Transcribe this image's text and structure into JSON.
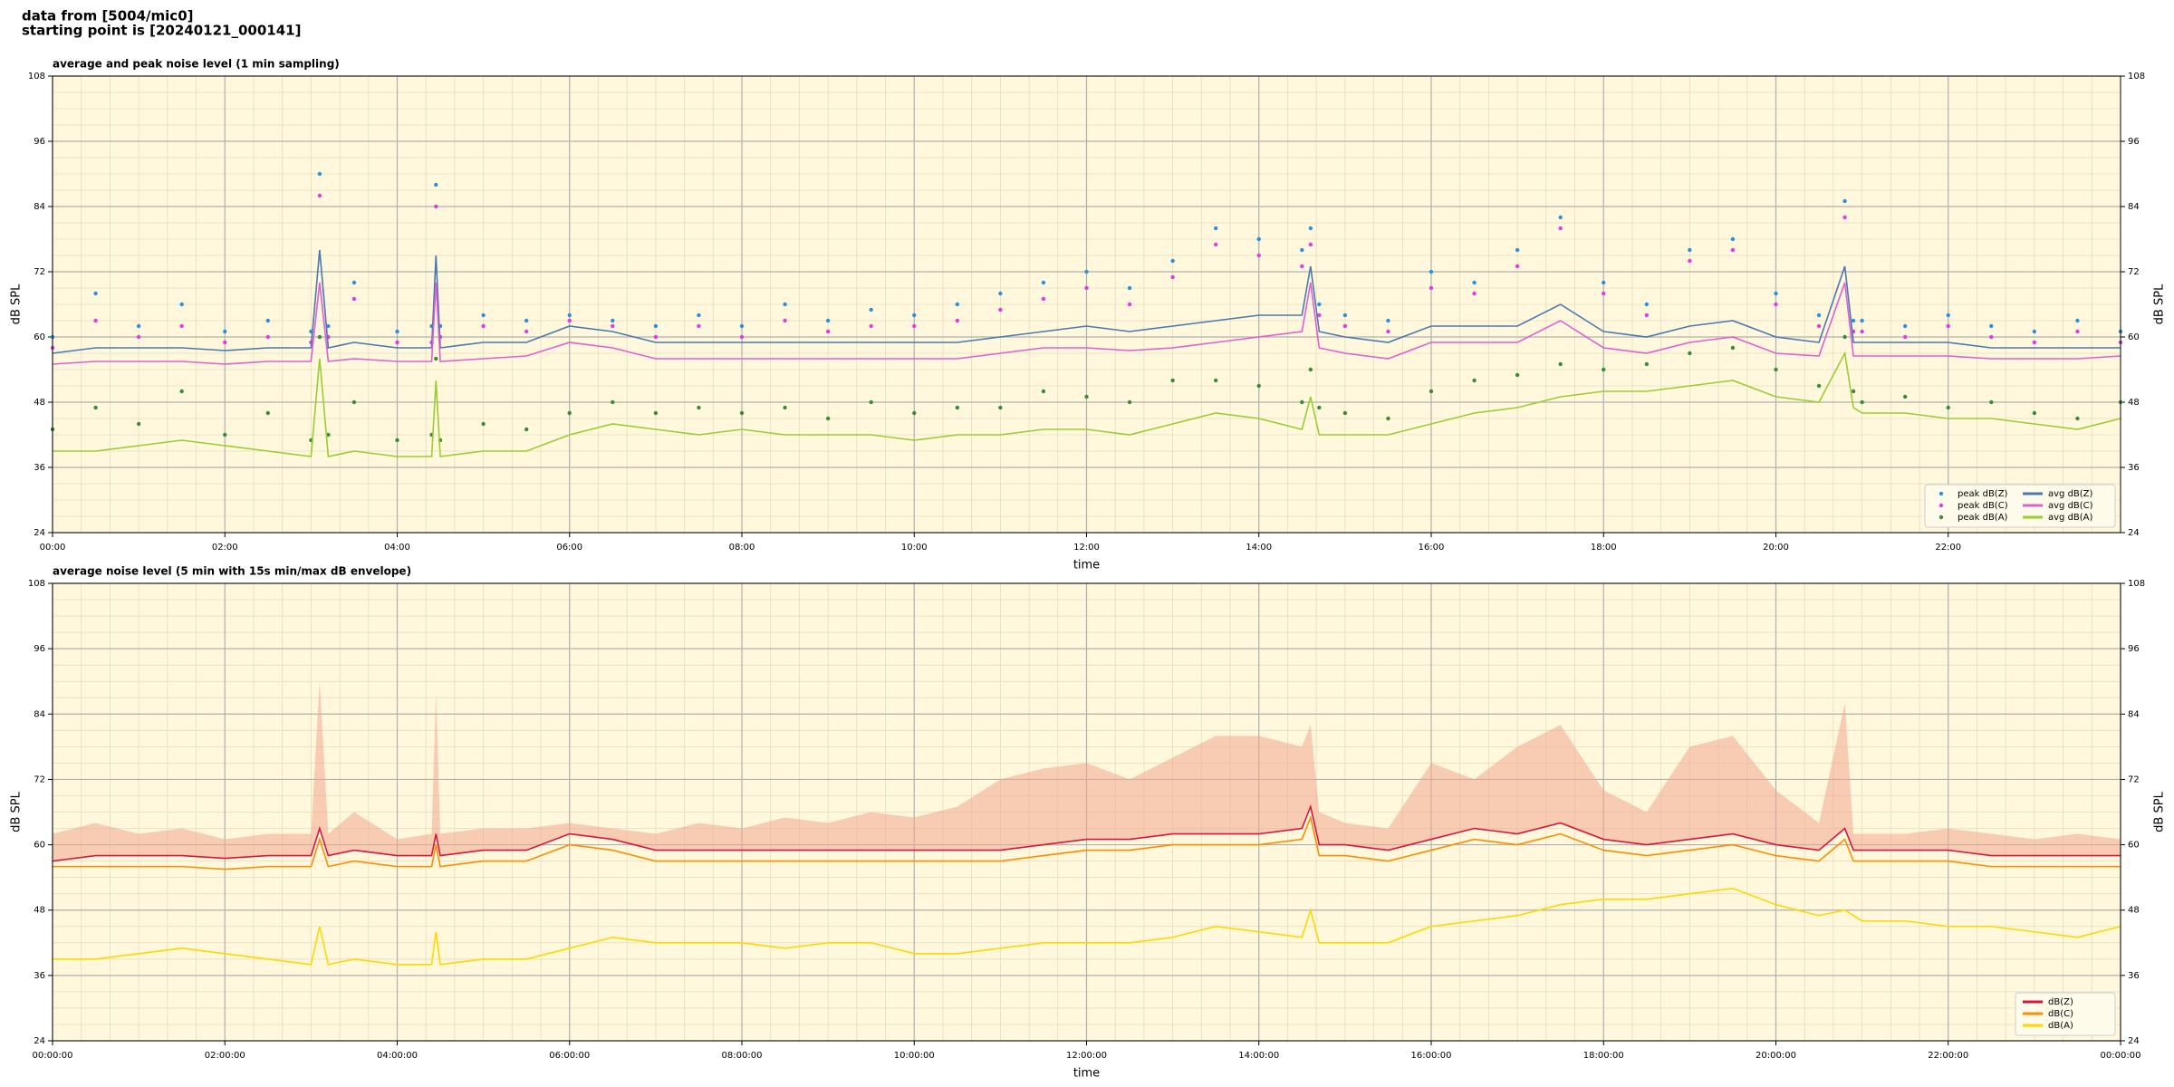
{
  "header": [
    "data from [5004/mic0]",
    "starting point is [20240121_000141]"
  ],
  "chart_data": [
    {
      "type": "line",
      "title": "average and peak noise level (1 min sampling)",
      "xlabel": "time",
      "ylabel": "dB SPL",
      "x": [
        0,
        0.5,
        1,
        1.5,
        2,
        2.5,
        3,
        3.1,
        3.2,
        3.5,
        4,
        4.4,
        4.45,
        4.5,
        5,
        5.5,
        6,
        6.5,
        7,
        7.5,
        8,
        8.5,
        9,
        9.5,
        10,
        10.5,
        11,
        11.5,
        12,
        12.5,
        13,
        13.5,
        14,
        14.5,
        14.6,
        14.7,
        15,
        15.5,
        16,
        16.5,
        17,
        17.5,
        18,
        18.5,
        19,
        19.5,
        20,
        20.5,
        20.8,
        20.9,
        21,
        21.5,
        22,
        22.5,
        23,
        23.5,
        24
      ],
      "xlim": [
        0,
        24
      ],
      "xticks": [
        {
          "value": 0,
          "label": "00:00"
        },
        {
          "value": 2,
          "label": "02:00"
        },
        {
          "value": 4,
          "label": "04:00"
        },
        {
          "value": 6,
          "label": "06:00"
        },
        {
          "value": 8,
          "label": "08:00"
        },
        {
          "value": 10,
          "label": "10:00"
        },
        {
          "value": 12,
          "label": "12:00"
        },
        {
          "value": 14,
          "label": "14:00"
        },
        {
          "value": 16,
          "label": "16:00"
        },
        {
          "value": 18,
          "label": "18:00"
        },
        {
          "value": 20,
          "label": "20:00"
        },
        {
          "value": 22,
          "label": "22:00"
        }
      ],
      "ylim": [
        24,
        108
      ],
      "yticks": [
        24,
        36,
        48,
        60,
        72,
        84,
        96,
        108
      ],
      "grid": true,
      "legend": "lower right",
      "legend_columns": 2,
      "series": [
        {
          "name": "peak dB(Z)",
          "type": "scatter",
          "color": "#2f8fd8",
          "values": [
            60,
            68,
            62,
            66,
            61,
            63,
            61,
            90,
            62,
            70,
            61,
            62,
            88,
            62,
            64,
            63,
            64,
            63,
            62,
            64,
            62,
            66,
            63,
            65,
            64,
            66,
            68,
            70,
            72,
            69,
            74,
            80,
            78,
            76,
            80,
            66,
            64,
            63,
            72,
            70,
            76,
            82,
            70,
            66,
            76,
            78,
            68,
            64,
            85,
            63,
            63,
            62,
            64,
            62,
            61,
            63,
            61
          ]
        },
        {
          "name": "peak dB(C)",
          "type": "scatter",
          "color": "#e03ce0",
          "values": [
            58,
            63,
            60,
            62,
            59,
            60,
            59,
            86,
            60,
            67,
            59,
            59,
            84,
            60,
            62,
            61,
            63,
            62,
            60,
            62,
            60,
            63,
            61,
            62,
            62,
            63,
            65,
            67,
            69,
            66,
            71,
            77,
            75,
            73,
            77,
            64,
            62,
            61,
            69,
            68,
            73,
            80,
            68,
            64,
            74,
            76,
            66,
            62,
            82,
            61,
            61,
            60,
            62,
            60,
            59,
            61,
            59
          ]
        },
        {
          "name": "peak dB(A)",
          "type": "scatter",
          "color": "#3a8a3a",
          "values": [
            43,
            47,
            44,
            50,
            42,
            46,
            41,
            60,
            42,
            48,
            41,
            42,
            56,
            41,
            44,
            43,
            46,
            48,
            46,
            47,
            46,
            47,
            45,
            48,
            46,
            47,
            47,
            50,
            49,
            48,
            52,
            52,
            51,
            48,
            54,
            47,
            46,
            45,
            50,
            52,
            53,
            55,
            54,
            55,
            57,
            58,
            54,
            51,
            60,
            50,
            48,
            49,
            47,
            48,
            46,
            45,
            48
          ]
        },
        {
          "name": "avg dB(Z)",
          "type": "line",
          "color": "#4a78b0",
          "values": [
            57,
            58,
            58,
            58,
            57.5,
            58,
            58,
            76,
            58,
            59,
            58,
            58,
            75,
            58,
            59,
            59,
            62,
            61,
            59,
            59,
            59,
            59,
            59,
            59,
            59,
            59,
            60,
            61,
            62,
            61,
            62,
            63,
            64,
            64,
            73,
            61,
            60,
            59,
            62,
            62,
            62,
            66,
            61,
            60,
            62,
            63,
            60,
            59,
            73,
            59,
            59,
            59,
            59,
            58,
            58,
            58,
            58
          ]
        },
        {
          "name": "avg dB(C)",
          "type": "line",
          "color": "#e060d0",
          "values": [
            55,
            55.5,
            55.5,
            55.5,
            55,
            55.5,
            55.5,
            70,
            55.5,
            56,
            55.5,
            55.5,
            70,
            55.5,
            56,
            56.5,
            59,
            58,
            56,
            56,
            56,
            56,
            56,
            56,
            56,
            56,
            57,
            58,
            58,
            57.5,
            58,
            59,
            60,
            61,
            70,
            58,
            57,
            56,
            59,
            59,
            59,
            63,
            58,
            57,
            59,
            60,
            57,
            56.5,
            70,
            56.5,
            56.5,
            56.5,
            56.5,
            56,
            56,
            56,
            56.5
          ]
        },
        {
          "name": "avg dB(A)",
          "type": "line",
          "color": "#9acd32",
          "values": [
            39,
            39,
            40,
            41,
            40,
            39,
            38,
            56,
            38,
            39,
            38,
            38,
            52,
            38,
            39,
            39,
            42,
            44,
            43,
            42,
            43,
            42,
            42,
            42,
            41,
            42,
            42,
            43,
            43,
            42,
            44,
            46,
            45,
            43,
            49,
            42,
            42,
            42,
            44,
            46,
            47,
            49,
            50,
            50,
            51,
            52,
            49,
            48,
            57,
            47,
            46,
            46,
            45,
            45,
            44,
            43,
            45
          ]
        }
      ]
    },
    {
      "type": "line",
      "title": "average noise level (5 min with 15s min/max dB envelope)",
      "xlabel": "time",
      "ylabel": "dB SPL",
      "x": [
        0,
        0.5,
        1,
        1.5,
        2,
        2.5,
        3,
        3.1,
        3.2,
        3.5,
        4,
        4.4,
        4.45,
        4.5,
        5,
        5.5,
        6,
        6.5,
        7,
        7.5,
        8,
        8.5,
        9,
        9.5,
        10,
        10.5,
        11,
        11.5,
        12,
        12.5,
        13,
        13.5,
        14,
        14.5,
        14.6,
        14.7,
        15,
        15.5,
        16,
        16.5,
        17,
        17.5,
        18,
        18.5,
        19,
        19.5,
        20,
        20.5,
        20.8,
        20.9,
        21,
        21.5,
        22,
        22.5,
        23,
        23.5,
        24
      ],
      "xlim": [
        0,
        24
      ],
      "xticks": [
        {
          "value": 0,
          "label": "00:00:00"
        },
        {
          "value": 2,
          "label": "02:00:00"
        },
        {
          "value": 4,
          "label": "04:00:00"
        },
        {
          "value": 6,
          "label": "06:00:00"
        },
        {
          "value": 8,
          "label": "08:00:00"
        },
        {
          "value": 10,
          "label": "10:00:00"
        },
        {
          "value": 12,
          "label": "12:00:00"
        },
        {
          "value": 14,
          "label": "14:00:00"
        },
        {
          "value": 16,
          "label": "16:00:00"
        },
        {
          "value": 18,
          "label": "18:00:00"
        },
        {
          "value": 20,
          "label": "20:00:00"
        },
        {
          "value": 22,
          "label": "22:00:00"
        },
        {
          "value": 24,
          "label": "00:00:00"
        }
      ],
      "ylim": [
        24,
        108
      ],
      "yticks": [
        24,
        36,
        48,
        60,
        72,
        84,
        96,
        108
      ],
      "grid": true,
      "legend": "lower right",
      "legend_columns": 1,
      "series": [
        {
          "name": "dB(Z)",
          "type": "line",
          "color": "#dc143c",
          "envelope_color": "#f0a890",
          "envelope_max": [
            62,
            64,
            62,
            63,
            61,
            62,
            62,
            90,
            62,
            66,
            61,
            62,
            88,
            62,
            63,
            63,
            64,
            63,
            62,
            64,
            63,
            65,
            64,
            66,
            65,
            67,
            72,
            74,
            75,
            72,
            76,
            80,
            80,
            78,
            82,
            66,
            64,
            63,
            75,
            72,
            78,
            82,
            70,
            66,
            78,
            80,
            70,
            64,
            86,
            62,
            62,
            62,
            63,
            62,
            61,
            62,
            61
          ],
          "values": [
            57,
            58,
            58,
            58,
            57.5,
            58,
            58,
            63,
            58,
            59,
            58,
            58,
            62,
            58,
            59,
            59,
            62,
            61,
            59,
            59,
            59,
            59,
            59,
            59,
            59,
            59,
            59,
            60,
            61,
            61,
            62,
            62,
            62,
            63,
            67,
            60,
            60,
            59,
            61,
            63,
            62,
            64,
            61,
            60,
            61,
            62,
            60,
            59,
            63,
            59,
            59,
            59,
            59,
            58,
            58,
            58,
            58
          ]
        },
        {
          "name": "dB(C)",
          "type": "line",
          "color": "#ff8c00",
          "values": [
            56,
            56,
            56,
            56,
            55.5,
            56,
            56,
            61,
            56,
            57,
            56,
            56,
            60,
            56,
            57,
            57,
            60,
            59,
            57,
            57,
            57,
            57,
            57,
            57,
            57,
            57,
            57,
            58,
            59,
            59,
            60,
            60,
            60,
            61,
            65,
            58,
            58,
            57,
            59,
            61,
            60,
            62,
            59,
            58,
            59,
            60,
            58,
            57,
            61,
            57,
            57,
            57,
            57,
            56,
            56,
            56,
            56
          ]
        },
        {
          "name": "dB(A)",
          "type": "line",
          "color": "#ffd700",
          "values": [
            39,
            39,
            40,
            41,
            40,
            39,
            38,
            45,
            38,
            39,
            38,
            38,
            44,
            38,
            39,
            39,
            41,
            43,
            42,
            42,
            42,
            41,
            42,
            42,
            40,
            40,
            41,
            42,
            42,
            42,
            43,
            45,
            44,
            43,
            48,
            42,
            42,
            42,
            45,
            46,
            47,
            49,
            50,
            50,
            51,
            52,
            49,
            47,
            48,
            47,
            46,
            46,
            45,
            45,
            44,
            43,
            45
          ]
        }
      ]
    }
  ]
}
